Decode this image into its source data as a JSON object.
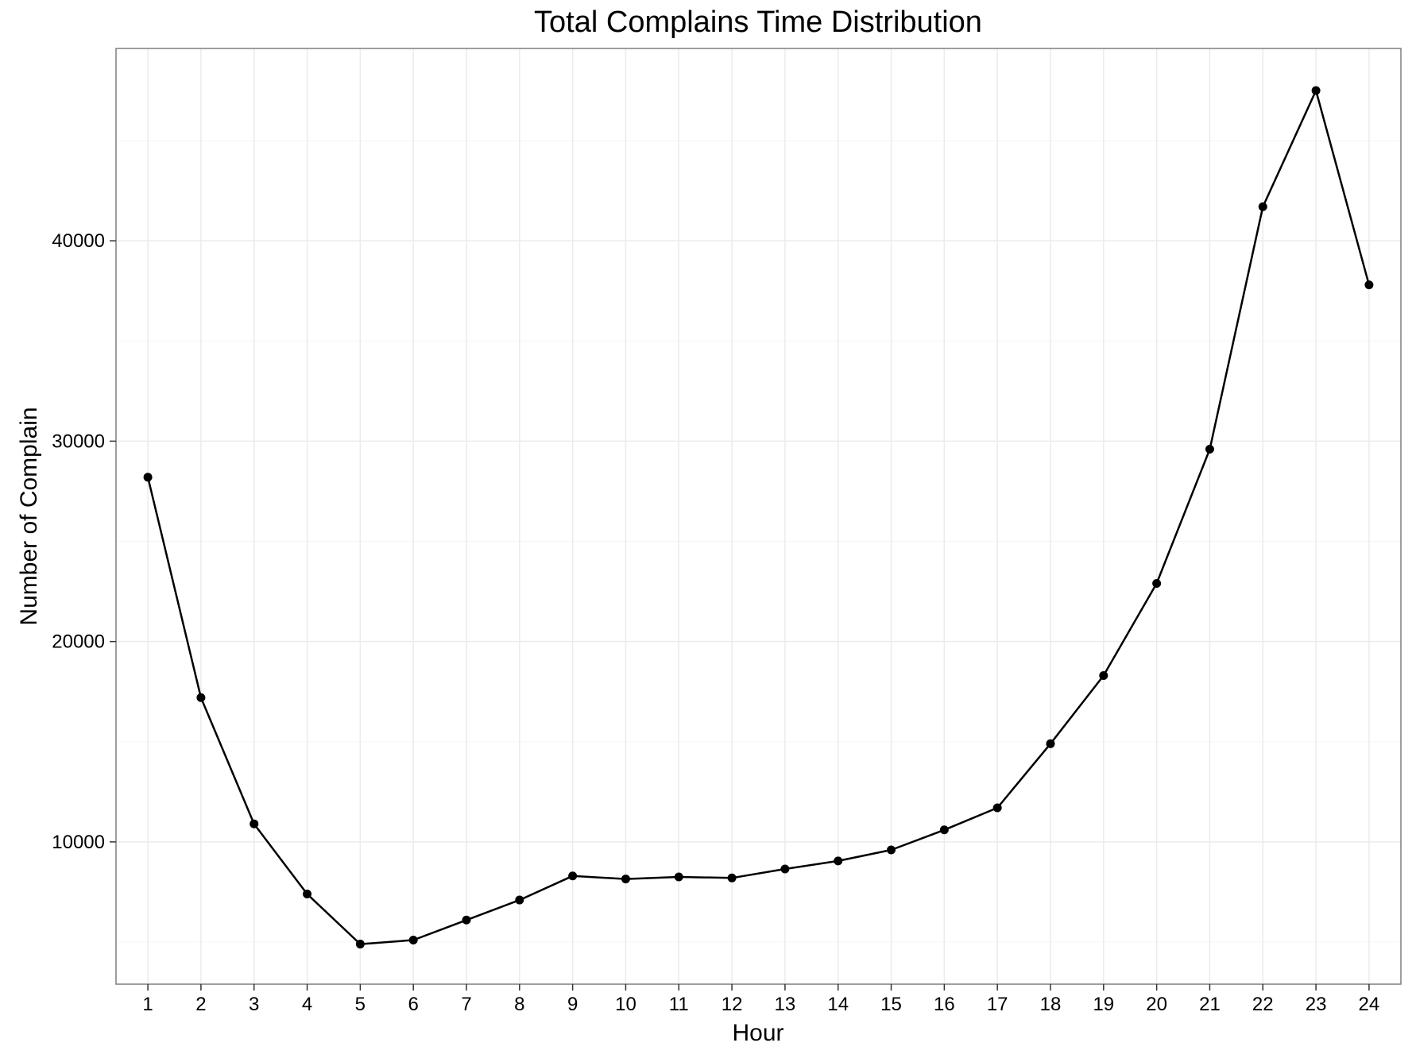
{
  "chart_data": {
    "type": "line",
    "title": "Total Complains Time Distribution",
    "xlabel": "Hour",
    "ylabel": "Number of Complain",
    "categories": [
      "1",
      "2",
      "3",
      "4",
      "5",
      "6",
      "7",
      "8",
      "9",
      "10",
      "11",
      "12",
      "13",
      "14",
      "15",
      "16",
      "17",
      "18",
      "19",
      "20",
      "21",
      "22",
      "23",
      "24"
    ],
    "x": [
      1,
      2,
      3,
      4,
      5,
      6,
      7,
      8,
      9,
      10,
      11,
      12,
      13,
      14,
      15,
      16,
      17,
      18,
      19,
      20,
      21,
      22,
      23,
      24
    ],
    "series": [
      {
        "values": [
          28200,
          17200,
          10900,
          7400,
          4900,
          5100,
          6100,
          7100,
          8300,
          8150,
          8250,
          8200,
          8650,
          9050,
          9600,
          10600,
          11700,
          14900,
          18300,
          22900,
          29600,
          41700,
          47500,
          37800
        ]
      }
    ],
    "yticks": [
      10000,
      20000,
      30000,
      40000
    ],
    "ytick_labels": [
      "10000",
      "20000",
      "30000",
      "40000"
    ],
    "ylim": [
      2900,
      49600
    ],
    "xlim": [
      0.4,
      24.6
    ],
    "grid": true,
    "legend": "none",
    "colors": {
      "line": "#000000",
      "point": "#000000",
      "grid_major": "#ebebeb",
      "grid_minor": "#f5f5f5",
      "panel_border": "#7f7f7f",
      "background": "#ffffff"
    }
  }
}
